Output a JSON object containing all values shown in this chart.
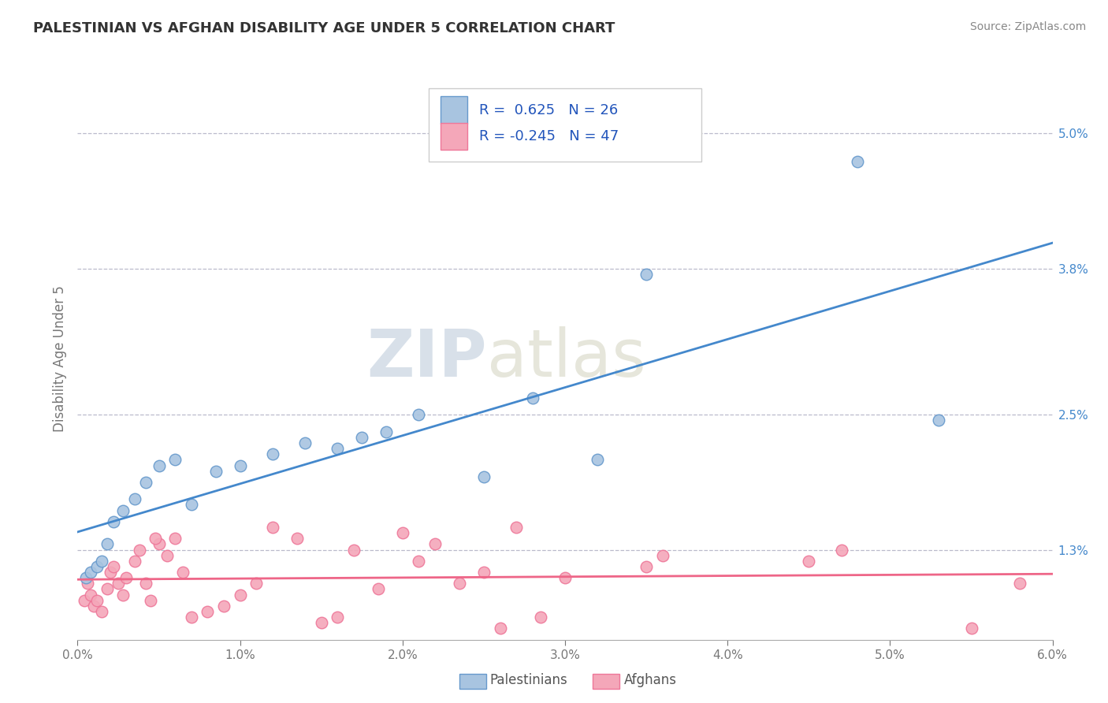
{
  "title": "PALESTINIAN VS AFGHAN DISABILITY AGE UNDER 5 CORRELATION CHART",
  "source": "Source: ZipAtlas.com",
  "ylabel": "Disability Age Under 5",
  "xlim": [
    0.0,
    6.0
  ],
  "ylim": [
    0.5,
    5.5
  ],
  "xticks": [
    0.0,
    1.0,
    2.0,
    3.0,
    4.0,
    5.0,
    6.0
  ],
  "xtick_labels": [
    "0.0%",
    "1.0%",
    "2.0%",
    "3.0%",
    "4.0%",
    "5.0%",
    "6.0%"
  ],
  "ytick_right_vals": [
    1.3,
    2.5,
    3.8,
    5.0
  ],
  "ytick_right_labels": [
    "1.3%",
    "2.5%",
    "3.8%",
    "5.0%"
  ],
  "palestinian_color": "#a8c4e0",
  "afghan_color": "#f4a7b9",
  "palestinian_edge": "#6699cc",
  "afghan_edge": "#ee7799",
  "line_blue": "#4488cc",
  "line_pink": "#ee6688",
  "r_palestinian": "0.625",
  "n_palestinian": "26",
  "r_afghan": "-0.245",
  "n_afghan": "47",
  "watermark_zip": "ZIP",
  "watermark_atlas": "atlas",
  "background_color": "#ffffff",
  "grid_color": "#bbbbcc",
  "legend_text_color": "#2255bb",
  "palestinian_x": [
    0.05,
    0.08,
    0.12,
    0.15,
    0.18,
    0.22,
    0.28,
    0.35,
    0.42,
    0.5,
    0.6,
    0.7,
    0.85,
    1.0,
    1.2,
    1.4,
    1.6,
    1.75,
    1.9,
    2.1,
    2.5,
    2.8,
    3.2,
    3.5,
    4.8,
    5.3
  ],
  "palestinian_y": [
    1.05,
    1.1,
    1.15,
    1.2,
    1.35,
    1.55,
    1.65,
    1.75,
    1.9,
    2.05,
    2.1,
    1.7,
    2.0,
    2.05,
    2.15,
    2.25,
    2.2,
    2.3,
    2.35,
    2.5,
    1.95,
    2.65,
    2.1,
    3.75,
    4.75,
    2.45
  ],
  "afghan_x": [
    0.04,
    0.06,
    0.08,
    0.1,
    0.12,
    0.15,
    0.18,
    0.2,
    0.22,
    0.25,
    0.28,
    0.3,
    0.35,
    0.38,
    0.42,
    0.45,
    0.5,
    0.55,
    0.6,
    0.65,
    0.7,
    0.8,
    0.9,
    1.0,
    1.1,
    1.2,
    1.35,
    1.5,
    1.6,
    1.7,
    1.85,
    2.0,
    2.1,
    2.2,
    2.35,
    2.5,
    2.6,
    2.7,
    2.85,
    3.0,
    3.5,
    3.6,
    4.5,
    4.7,
    5.5,
    5.8,
    0.48
  ],
  "afghan_y": [
    0.85,
    1.0,
    0.9,
    0.8,
    0.85,
    0.75,
    0.95,
    1.1,
    1.15,
    1.0,
    0.9,
    1.05,
    1.2,
    1.3,
    1.0,
    0.85,
    1.35,
    1.25,
    1.4,
    1.1,
    0.7,
    0.75,
    0.8,
    0.9,
    1.0,
    1.5,
    1.4,
    0.65,
    0.7,
    1.3,
    0.95,
    1.45,
    1.2,
    1.35,
    1.0,
    1.1,
    0.6,
    1.5,
    0.7,
    1.05,
    1.15,
    1.25,
    1.2,
    1.3,
    0.6,
    1.0,
    1.4
  ]
}
